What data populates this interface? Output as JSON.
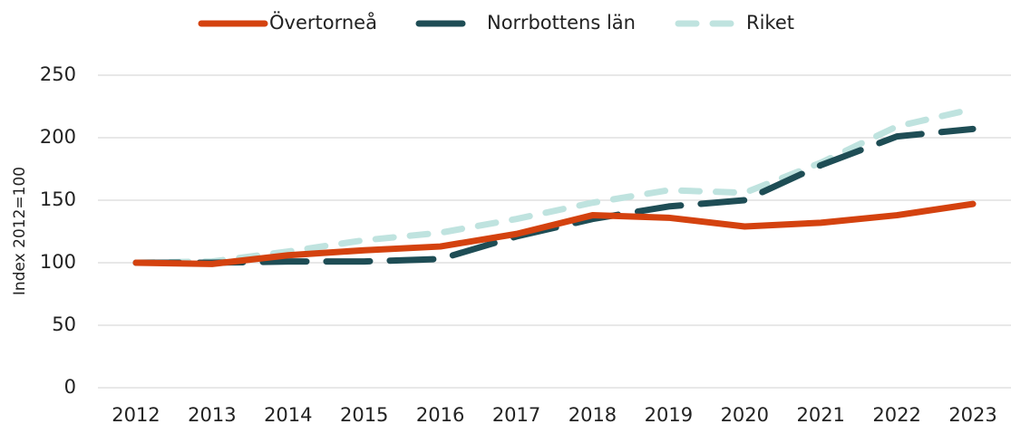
{
  "chart_data": {
    "type": "line",
    "y_label": "Index 2012=100",
    "categories": [
      "2012",
      "2013",
      "2014",
      "2015",
      "2016",
      "2017",
      "2018",
      "2019",
      "2020",
      "2021",
      "2022",
      "2023"
    ],
    "series": [
      {
        "name": "Övertorneå",
        "color": "#d4420f",
        "dash": "solid",
        "values": [
          100,
          99,
          106,
          110,
          113,
          123,
          138,
          136,
          129,
          132,
          138,
          147
        ]
      },
      {
        "name": "Norrbottens län",
        "color": "#1e4d55",
        "dash": "long",
        "values": [
          100,
          100,
          101,
          101,
          103,
          121,
          135,
          145,
          150,
          178,
          201,
          207
        ]
      },
      {
        "name": "Riket",
        "color": "#bfe3df",
        "dash": "short",
        "values": [
          100,
          101,
          109,
          118,
          124,
          135,
          148,
          158,
          156,
          180,
          209,
          223
        ]
      }
    ],
    "ylim": [
      0,
      250
    ],
    "yticks": [
      0,
      50,
      100,
      150,
      200,
      250
    ],
    "grid": true,
    "legend": "top"
  }
}
